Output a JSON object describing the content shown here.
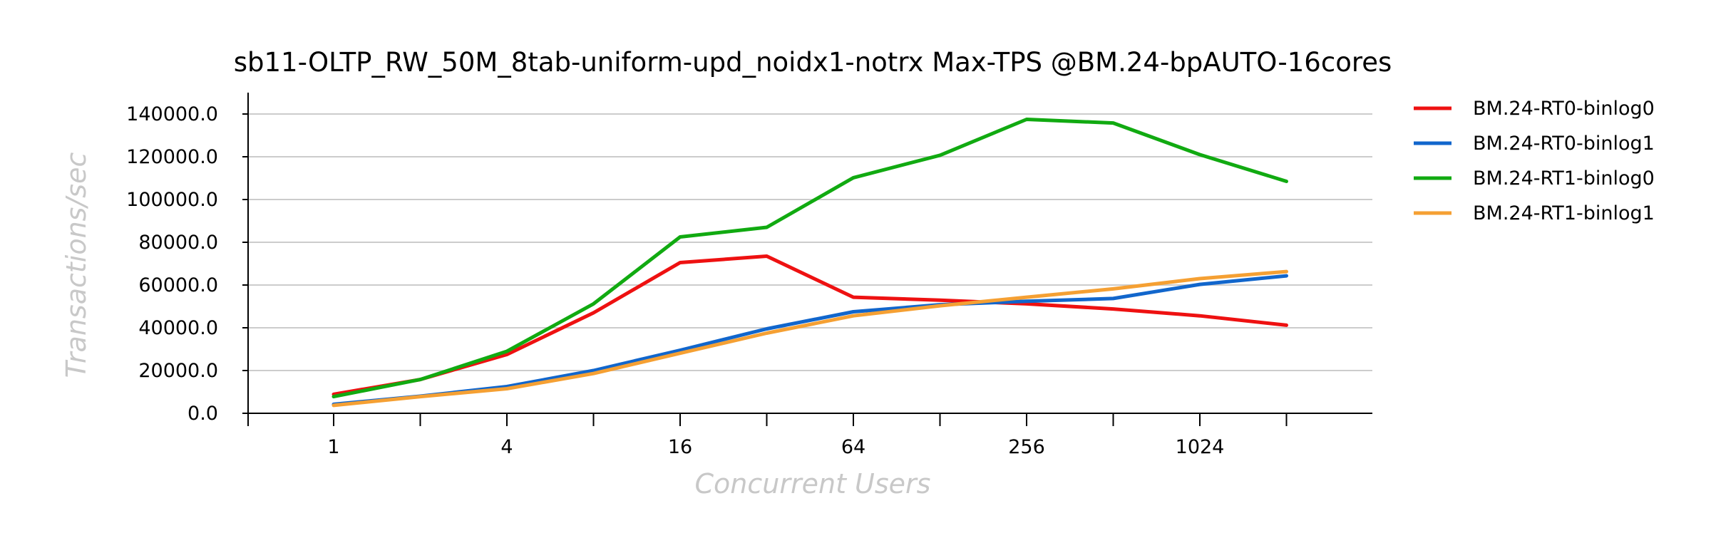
{
  "chart_data": {
    "type": "line",
    "title": "sb11-OLTP_RW_50M_8tab-uniform-upd_noidx1-notrx Max-TPS @BM.24-bpAUTO-16cores",
    "xlabel": "Concurrent Users",
    "ylabel": "Transactions/sec",
    "x_scale": "log2",
    "x": [
      1,
      2,
      4,
      8,
      16,
      32,
      64,
      128,
      256,
      512,
      1024,
      2048
    ],
    "x_ticks_labeled": [
      "1",
      "4",
      "16",
      "64",
      "256",
      "1024"
    ],
    "y_ticks": [
      "0.0",
      "20000.0",
      "40000.0",
      "60000.0",
      "80000.0",
      "100000.0",
      "120000.0",
      "140000.0"
    ],
    "ylim": [
      0,
      150000
    ],
    "grid": true,
    "legend_position": "right",
    "series": [
      {
        "name": "BM.24-RT0-binlog0",
        "color": "#ee1111",
        "values": [
          8900,
          15800,
          27500,
          47000,
          70500,
          73500,
          54300,
          52900,
          51200,
          48800,
          45600,
          41200
        ]
      },
      {
        "name": "BM.24-RT0-binlog1",
        "color": "#1166cc",
        "values": [
          4200,
          8000,
          12500,
          20000,
          29500,
          39500,
          47500,
          50800,
          52400,
          53700,
          60300,
          64300
        ]
      },
      {
        "name": "BM.24-RT1-binlog0",
        "color": "#11aa11",
        "values": [
          7800,
          15800,
          29000,
          51200,
          82500,
          87000,
          110200,
          120700,
          137500,
          135800,
          121000,
          108500
        ]
      },
      {
        "name": "BM.24-RT1-binlog1",
        "color": "#f5a033",
        "values": [
          3700,
          7800,
          11500,
          18600,
          28100,
          37500,
          45600,
          50300,
          54300,
          58200,
          63000,
          66300
        ]
      }
    ]
  }
}
